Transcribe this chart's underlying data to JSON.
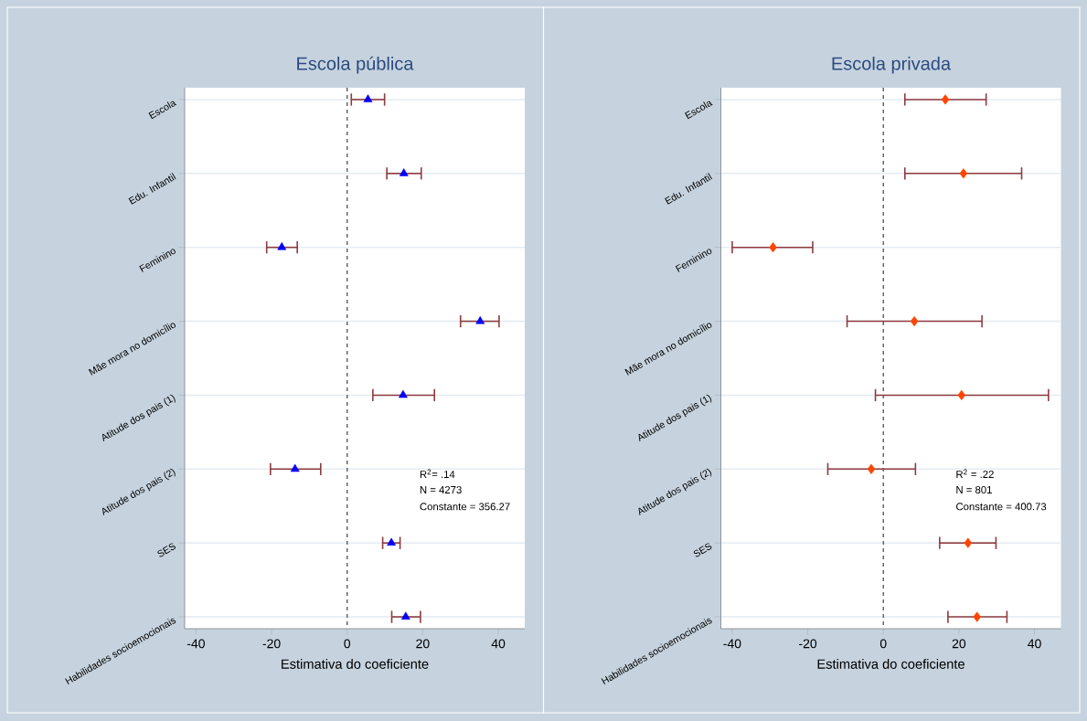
{
  "chart_data": [
    {
      "type": "scatter",
      "title": "Escola pública",
      "xlabel": "Estimativa do coeficiente",
      "orientation": "horizontal",
      "categories": [
        "Escola",
        "Edu. Infantil",
        "Feminino",
        "Mãe mora no domicílio",
        "Atitude dos pais (1)",
        "Atitude dos pais (2)",
        "SES",
        "Habilidades socioemocionais"
      ],
      "values": [
        5.5,
        15.0,
        -17.3,
        35.2,
        14.8,
        -13.8,
        11.7,
        15.5
      ],
      "errors": [
        [
          1.1,
          9.9
        ],
        [
          10.5,
          19.6
        ],
        [
          -21.3,
          -13.2
        ],
        [
          30.0,
          40.2
        ],
        [
          6.8,
          23.1
        ],
        [
          -20.3,
          -7.0
        ],
        [
          9.4,
          14.0
        ],
        [
          11.8,
          19.4
        ]
      ],
      "color": "#0000ff",
      "marker": "triangle",
      "xlim": [
        -43,
        47
      ],
      "xticks": [
        -40,
        -20,
        0,
        20,
        40
      ],
      "grid": "y",
      "ref_lines": [
        {
          "axis": "x",
          "value": 0,
          "line_style": "dashed",
          "color": "#555555"
        }
      ],
      "annotations": [
        "R$^{2}$= .14",
        "N = 4273",
        "Constante = 356.27"
      ]
    },
    {
      "type": "scatter",
      "title": "Escola privada",
      "xlabel": "Estimativa do coeficiente",
      "orientation": "horizontal",
      "categories": [
        "Escola",
        "Edu. Infantil",
        "Feminino",
        "Mãe mora no domicílio",
        "Atitude dos pais (1)",
        "Atitude dos pais (2)",
        "SES",
        "Habilidades socioemocionais"
      ],
      "values": [
        16.4,
        21.2,
        -29.2,
        8.2,
        20.7,
        -3.2,
        22.4,
        24.8
      ],
      "errors": [
        [
          5.7,
          27.2
        ],
        [
          5.7,
          36.6
        ],
        [
          -40.0,
          -18.7
        ],
        [
          -9.6,
          26.1
        ],
        [
          -2.1,
          43.7
        ],
        [
          -14.7,
          8.5
        ],
        [
          14.9,
          29.8
        ],
        [
          17.1,
          32.7
        ]
      ],
      "color": "#ff4500",
      "marker": "diamond",
      "xlim": [
        -43,
        47
      ],
      "xticks": [
        -40,
        -20,
        0,
        20,
        40
      ],
      "grid": "y",
      "ref_lines": [
        {
          "axis": "x",
          "value": 0,
          "line_style": "dashed",
          "color": "#555555"
        }
      ],
      "annotations": [
        "R$^{2}$ = .22",
        "N = 801",
        "Constante = 400.73"
      ]
    }
  ]
}
